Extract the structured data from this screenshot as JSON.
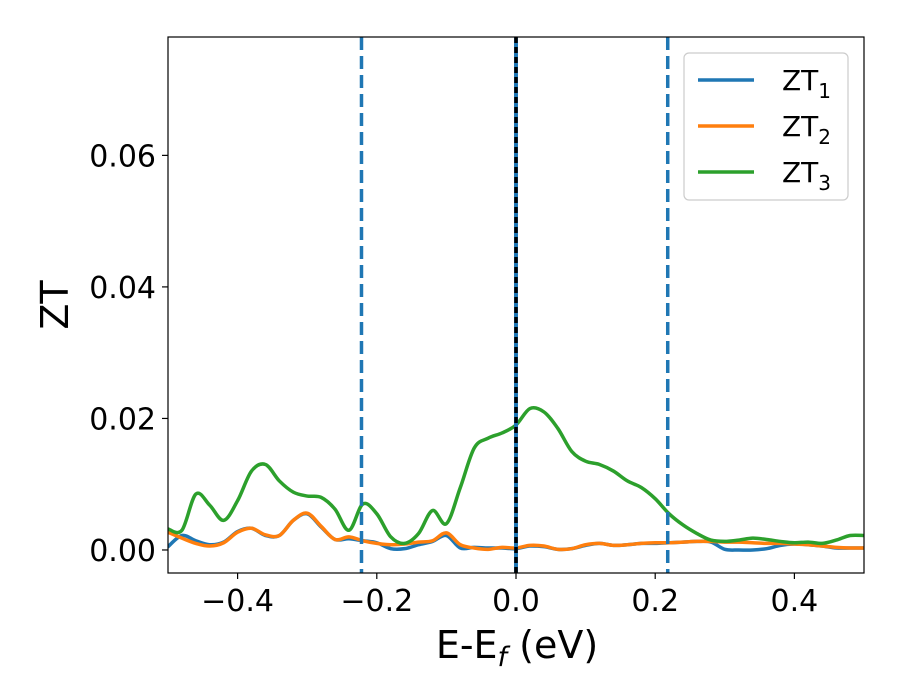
{
  "chart_data": {
    "type": "line",
    "xlabel": {
      "main": "E-E",
      "sub": "f",
      "suffix": " (eV)"
    },
    "ylabel": "ZT",
    "xlim": [
      -0.5,
      0.5
    ],
    "ylim": [
      -0.0035,
      0.078
    ],
    "xticks": [
      -0.4,
      -0.2,
      0.0,
      0.2,
      0.4
    ],
    "xtick_labels": [
      "−0.4",
      "−0.2",
      "0.0",
      "0.2",
      "0.4"
    ],
    "yticks": [
      0.0,
      0.02,
      0.04,
      0.06
    ],
    "ytick_labels": [
      "0.00",
      "0.02",
      "0.04",
      "0.06"
    ],
    "grid": false,
    "legend_position": "top-right",
    "vlines": [
      {
        "x": -0.222,
        "style": "dashed",
        "color": "#1f77b4"
      },
      {
        "x": 0.0,
        "style": "solid",
        "color": "#1f77b4"
      },
      {
        "x": 0.0,
        "style": "dotted",
        "color": "#000000"
      },
      {
        "x": 0.218,
        "style": "dashed",
        "color": "#1f77b4"
      }
    ],
    "series": [
      {
        "name": "ZT",
        "name_sub": "1",
        "color": "#1f77b4",
        "x": [
          -0.5,
          -0.48,
          -0.46,
          -0.44,
          -0.42,
          -0.4,
          -0.38,
          -0.36,
          -0.34,
          -0.32,
          -0.3,
          -0.28,
          -0.26,
          -0.24,
          -0.22,
          -0.2,
          -0.18,
          -0.16,
          -0.14,
          -0.12,
          -0.1,
          -0.08,
          -0.06,
          -0.04,
          -0.02,
          0.0,
          0.02,
          0.04,
          0.06,
          0.08,
          0.1,
          0.12,
          0.14,
          0.16,
          0.18,
          0.2,
          0.22,
          0.24,
          0.26,
          0.28,
          0.3,
          0.32,
          0.34,
          0.36,
          0.38,
          0.4,
          0.42,
          0.44,
          0.46,
          0.48,
          0.5
        ],
        "y": [
          0.0005,
          0.0022,
          0.0014,
          0.0008,
          0.0012,
          0.0028,
          0.0033,
          0.0022,
          0.0022,
          0.0045,
          0.0055,
          0.0035,
          0.0016,
          0.0017,
          0.0014,
          0.0011,
          0.0002,
          0.0002,
          0.0008,
          0.0013,
          0.0022,
          0.0003,
          0.0004,
          0.0003,
          0.0003,
          0.0002,
          0.0006,
          0.0005,
          0.0001,
          0.0002,
          0.0007,
          0.001,
          0.0007,
          0.0008,
          0.001,
          0.001,
          0.0011,
          0.0012,
          0.0013,
          0.0012,
          0.0001,
          0.0,
          0.0,
          0.0002,
          0.0007,
          0.0009,
          0.0008,
          0.0006,
          0.0003,
          0.0003,
          0.0003
        ]
      },
      {
        "name": "ZT",
        "name_sub": "2",
        "color": "#ff7f0e",
        "x": [
          -0.5,
          -0.48,
          -0.46,
          -0.44,
          -0.42,
          -0.4,
          -0.38,
          -0.36,
          -0.34,
          -0.32,
          -0.3,
          -0.28,
          -0.26,
          -0.24,
          -0.22,
          -0.2,
          -0.18,
          -0.16,
          -0.14,
          -0.12,
          -0.1,
          -0.08,
          -0.06,
          -0.04,
          -0.02,
          0.0,
          0.02,
          0.04,
          0.06,
          0.08,
          0.1,
          0.12,
          0.14,
          0.16,
          0.18,
          0.2,
          0.22,
          0.24,
          0.26,
          0.28,
          0.3,
          0.32,
          0.34,
          0.36,
          0.38,
          0.4,
          0.42,
          0.44,
          0.46,
          0.48,
          0.5
        ],
        "y": [
          0.0027,
          0.0018,
          0.001,
          0.0006,
          0.0011,
          0.0027,
          0.0033,
          0.0023,
          0.0022,
          0.0045,
          0.0056,
          0.0036,
          0.0016,
          0.002,
          0.0014,
          0.001,
          0.0008,
          0.0009,
          0.0012,
          0.0014,
          0.0026,
          0.0008,
          0.0003,
          0.0001,
          0.0004,
          0.0003,
          0.0007,
          0.0006,
          0.0001,
          0.0002,
          0.0008,
          0.001,
          0.0007,
          0.0008,
          0.001,
          0.0011,
          0.0011,
          0.0012,
          0.0013,
          0.0013,
          0.0012,
          0.0012,
          0.0011,
          0.001,
          0.001,
          0.0009,
          0.0008,
          0.0006,
          0.0004,
          0.0003,
          0.0003
        ]
      },
      {
        "name": "ZT",
        "name_sub": "3",
        "color": "#2ca02c",
        "x": [
          -0.5,
          -0.48,
          -0.46,
          -0.44,
          -0.42,
          -0.4,
          -0.38,
          -0.36,
          -0.34,
          -0.32,
          -0.3,
          -0.28,
          -0.26,
          -0.24,
          -0.22,
          -0.2,
          -0.18,
          -0.16,
          -0.14,
          -0.12,
          -0.1,
          -0.08,
          -0.06,
          -0.04,
          -0.02,
          0.0,
          0.02,
          0.04,
          0.06,
          0.08,
          0.1,
          0.12,
          0.14,
          0.16,
          0.18,
          0.2,
          0.22,
          0.24,
          0.26,
          0.28,
          0.3,
          0.32,
          0.34,
          0.36,
          0.38,
          0.4,
          0.42,
          0.44,
          0.46,
          0.48,
          0.5
        ],
        "y": [
          0.0032,
          0.003,
          0.0085,
          0.0068,
          0.0045,
          0.0075,
          0.012,
          0.013,
          0.0105,
          0.0088,
          0.0082,
          0.008,
          0.0062,
          0.003,
          0.007,
          0.0055,
          0.002,
          0.001,
          0.0025,
          0.006,
          0.004,
          0.0095,
          0.0155,
          0.017,
          0.0178,
          0.019,
          0.0215,
          0.021,
          0.0185,
          0.015,
          0.0135,
          0.013,
          0.012,
          0.0105,
          0.0095,
          0.0078,
          0.0055,
          0.0038,
          0.0025,
          0.0015,
          0.0013,
          0.0015,
          0.0018,
          0.0016,
          0.0013,
          0.0011,
          0.0012,
          0.001,
          0.0015,
          0.0022,
          0.0022
        ]
      }
    ]
  }
}
